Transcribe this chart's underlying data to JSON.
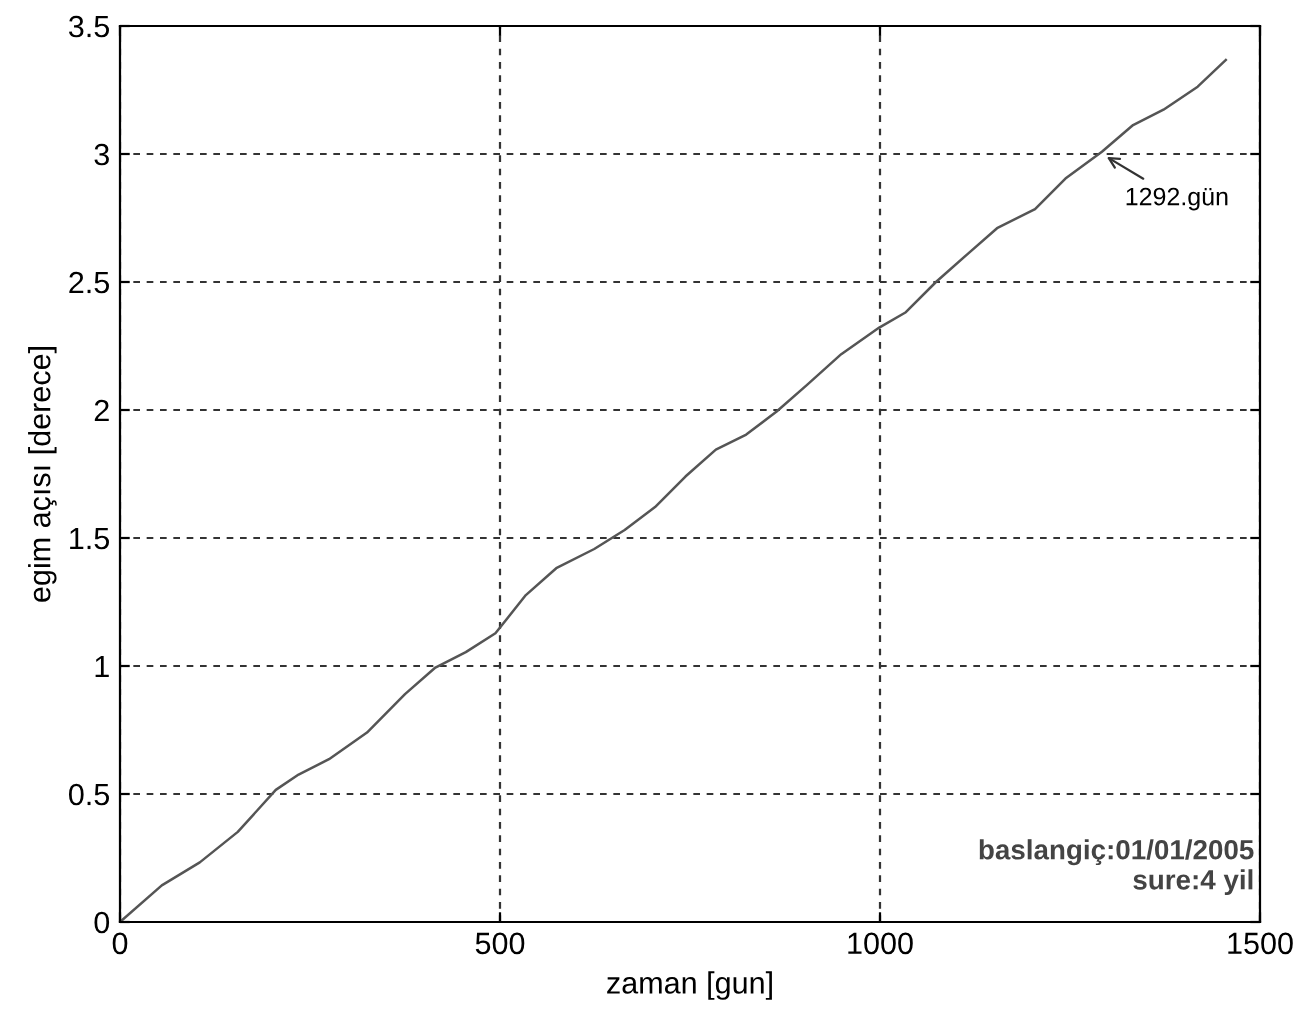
{
  "chart_data": {
    "type": "line",
    "xlabel": "zaman [gun]",
    "ylabel": "egim açısı [derece]",
    "x": [
      0,
      55,
      105,
      155,
      205,
      235,
      275,
      325,
      375,
      415,
      455,
      494,
      534,
      574,
      624,
      664,
      704,
      744,
      784,
      824,
      864,
      904,
      949,
      999,
      1034,
      1074,
      1114,
      1154,
      1204,
      1244,
      1292,
      1333,
      1373,
      1418,
      1455
    ],
    "series": [
      {
        "color": "#555555",
        "values": [
          0,
          0.143,
          0.233,
          0.352,
          0.516,
          0.576,
          0.636,
          0.74,
          0.89,
          0.994,
          1.054,
          1.128,
          1.277,
          1.382,
          1.457,
          1.531,
          1.621,
          1.74,
          1.845,
          1.904,
          1.994,
          2.098,
          2.218,
          2.322,
          2.382,
          2.501,
          2.606,
          2.71,
          2.785,
          2.904,
          3.009,
          3.113,
          3.173,
          3.263,
          3.367
        ]
      }
    ],
    "xlim": [
      0,
      1500
    ],
    "xticks": [
      0,
      500,
      1000,
      1500
    ],
    "ylim": [
      0,
      3.5
    ],
    "yticks": [
      0,
      0.5,
      1,
      1.5,
      2,
      2.5,
      3,
      3.5
    ],
    "grid": true,
    "line_style": "solid",
    "marker": "none",
    "annotations": [
      {
        "text": "1292.gün",
        "x": 1292,
        "y": 3.0
      },
      "baslangiç:01/01/2005\nsure:4 yil"
    ]
  }
}
